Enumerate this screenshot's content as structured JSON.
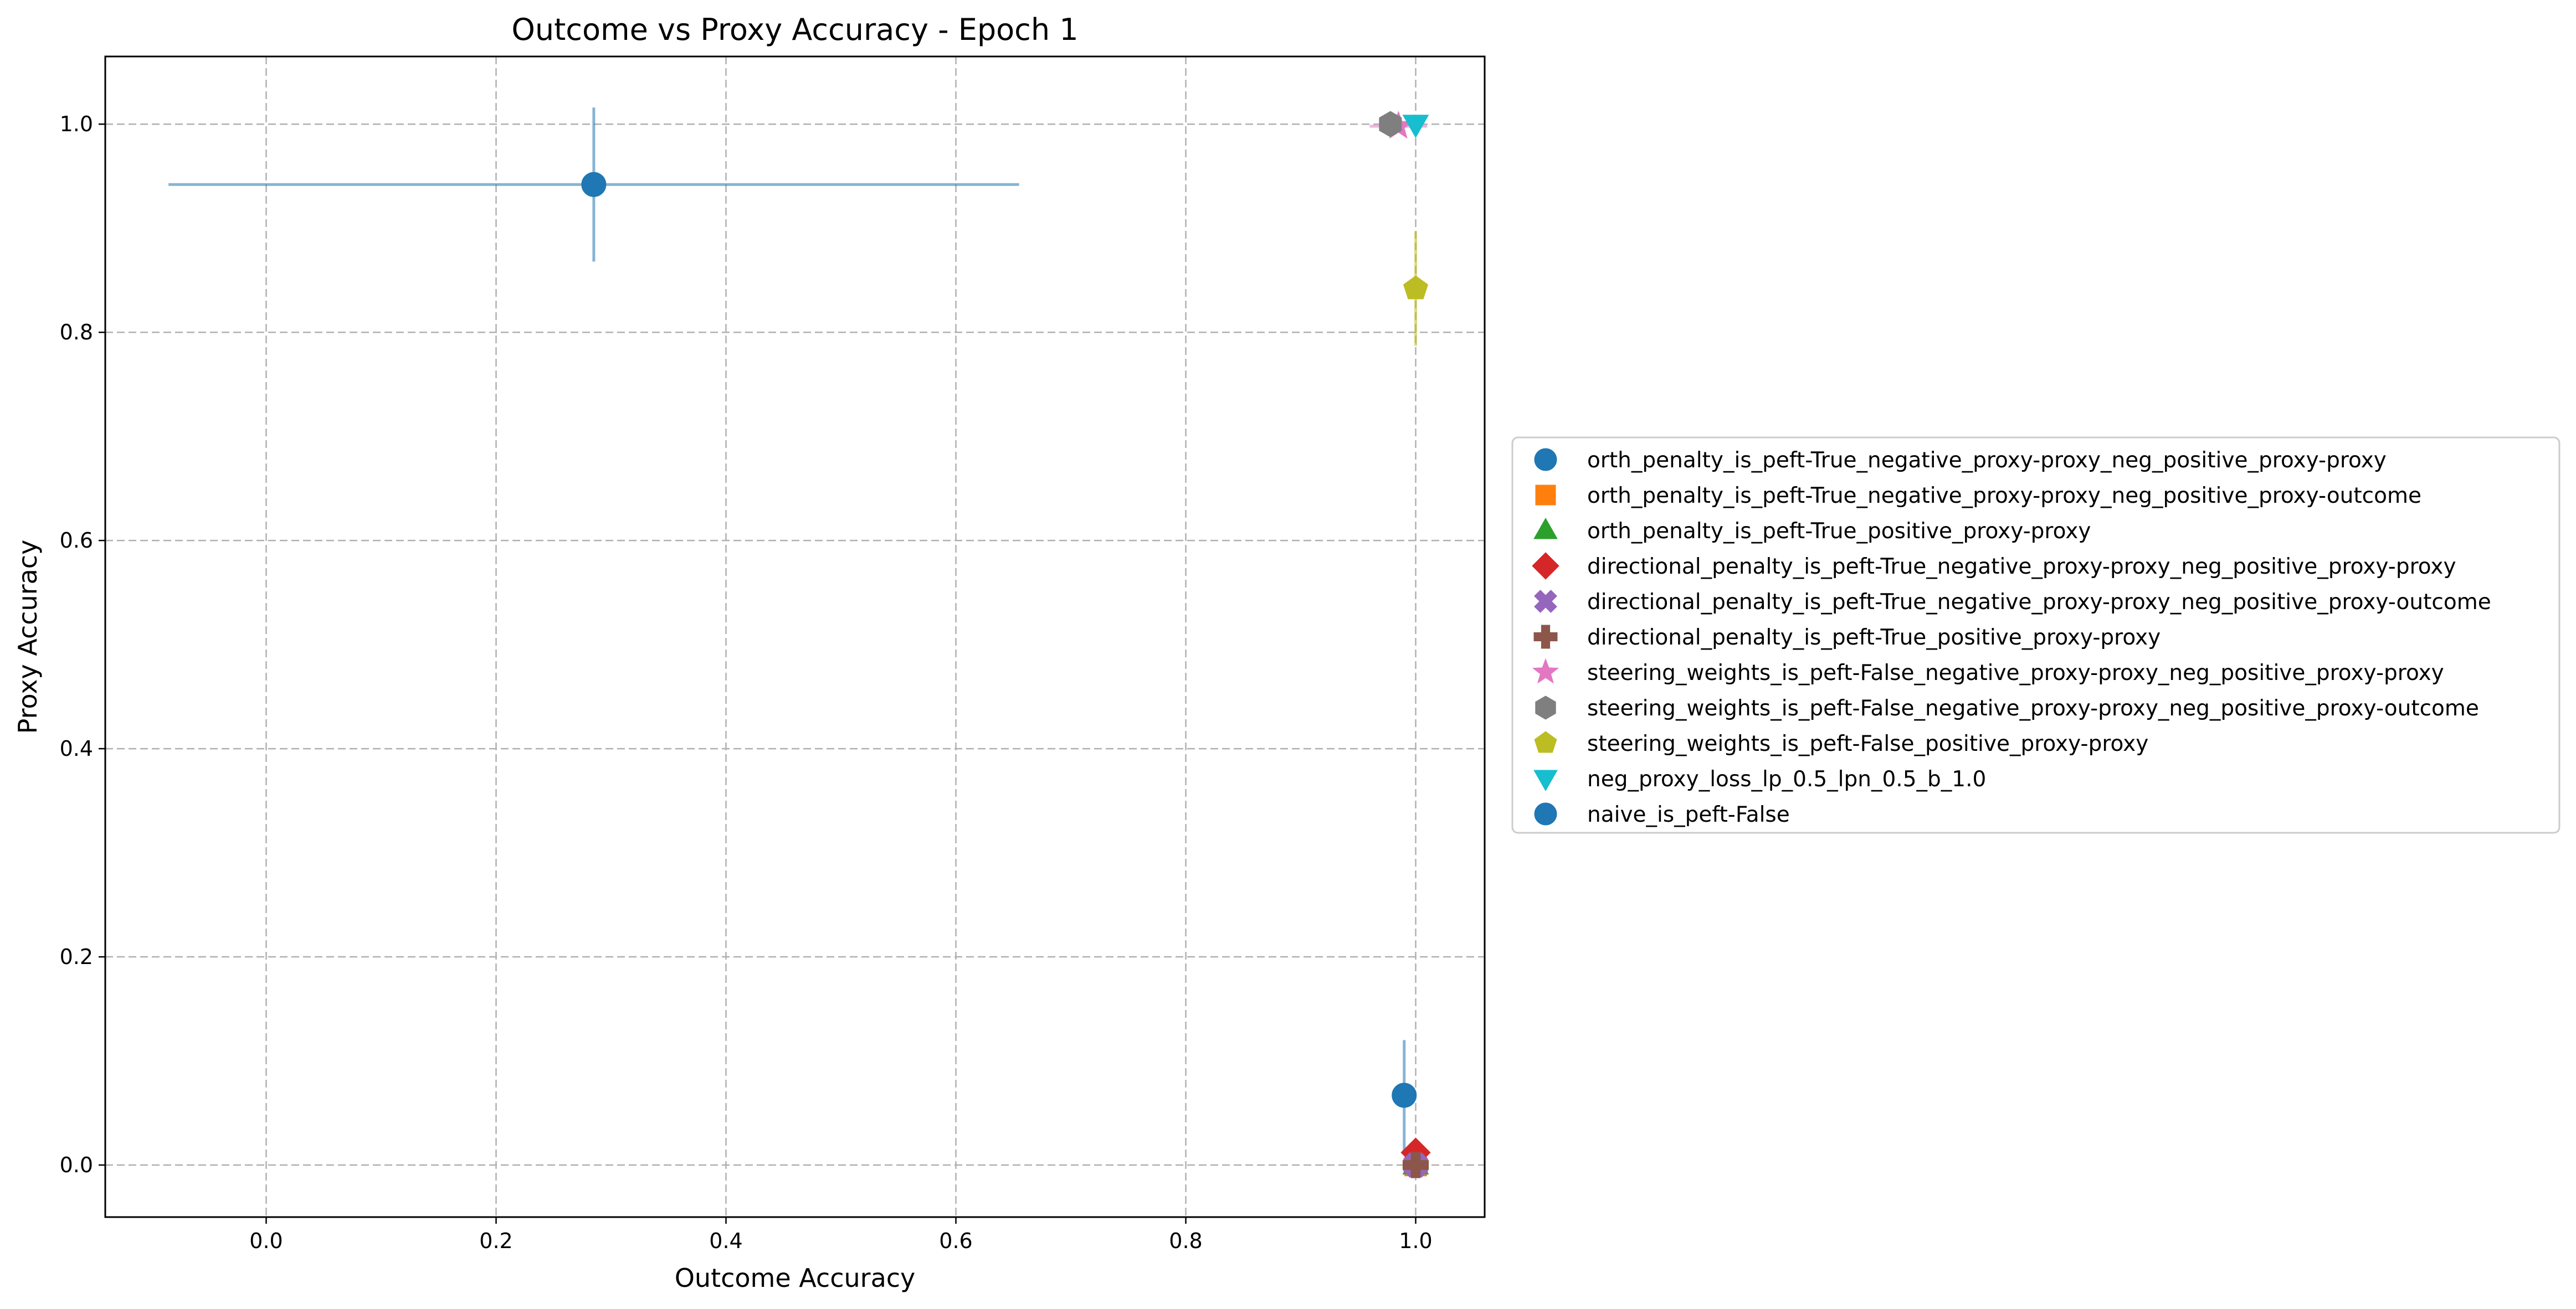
{
  "chart_data": {
    "type": "scatter",
    "title": "Outcome vs Proxy Accuracy - Epoch 1",
    "xlabel": "Outcome Accuracy",
    "ylabel": "Proxy Accuracy",
    "xlim": [
      -0.14,
      1.06
    ],
    "ylim": [
      -0.05,
      1.065
    ],
    "xticks": [
      0.0,
      0.2,
      0.4,
      0.6,
      0.8,
      1.0
    ],
    "xtick_labels": [
      "0.0",
      "0.2",
      "0.4",
      "0.6",
      "0.8",
      "1.0"
    ],
    "yticks": [
      0.0,
      0.2,
      0.4,
      0.6,
      0.8,
      1.0
    ],
    "ytick_labels": [
      "0.0",
      "0.2",
      "0.4",
      "0.6",
      "0.8",
      "1.0"
    ],
    "grid": true,
    "legend_placement": "right-outside",
    "series": [
      {
        "name": "orth_penalty_is_peft-True_negative_proxy-proxy_neg_positive_proxy-proxy",
        "marker": "circle",
        "color": "#1f77b4",
        "points": [
          {
            "x": 1.0,
            "y": 0.0,
            "xerr": 0.0,
            "yerr": 0.0
          }
        ]
      },
      {
        "name": "orth_penalty_is_peft-True_negative_proxy-proxy_neg_positive_proxy-outcome",
        "marker": "square",
        "color": "#ff7f0e",
        "points": [
          {
            "x": 1.0,
            "y": 0.0,
            "xerr": 0.0,
            "yerr": 0.0
          }
        ]
      },
      {
        "name": "orth_penalty_is_peft-True_positive_proxy-proxy",
        "marker": "triangle-up",
        "color": "#2ca02c",
        "points": [
          {
            "x": 1.0,
            "y": 0.0,
            "xerr": 0.0,
            "yerr": 0.0
          }
        ]
      },
      {
        "name": "directional_penalty_is_peft-True_negative_proxy-proxy_neg_positive_proxy-proxy",
        "marker": "diamond",
        "color": "#d62728",
        "points": [
          {
            "x": 1.0,
            "y": 0.012,
            "xerr": 0.0,
            "yerr": 0.012
          }
        ]
      },
      {
        "name": "directional_penalty_is_peft-True_negative_proxy-proxy_neg_positive_proxy-outcome",
        "marker": "x-thick",
        "color": "#9467bd",
        "points": [
          {
            "x": 1.0,
            "y": 0.0,
            "xerr": 0.0,
            "yerr": 0.0
          }
        ]
      },
      {
        "name": "directional_penalty_is_peft-True_positive_proxy-proxy",
        "marker": "plus-thick",
        "color": "#8c564b",
        "points": [
          {
            "x": 1.0,
            "y": 0.0,
            "xerr": 0.0,
            "yerr": 0.0
          }
        ]
      },
      {
        "name": "steering_weights_is_peft-False_negative_proxy-proxy_neg_positive_proxy-proxy",
        "marker": "star",
        "color": "#e377c2",
        "points": [
          {
            "x": 0.985,
            "y": 0.998,
            "xerr": 0.025,
            "yerr": 0.003
          }
        ]
      },
      {
        "name": "steering_weights_is_peft-False_negative_proxy-proxy_neg_positive_proxy-outcome",
        "marker": "hexagon",
        "color": "#7f7f7f",
        "points": [
          {
            "x": 0.978,
            "y": 1.0,
            "xerr": 0.0,
            "yerr": 0.0
          }
        ]
      },
      {
        "name": "steering_weights_is_peft-False_positive_proxy-proxy",
        "marker": "pentagon",
        "color": "#bcbd22",
        "points": [
          {
            "x": 1.0,
            "y": 0.842,
            "xerr": 0.0,
            "yerr": 0.055
          }
        ]
      },
      {
        "name": "neg_proxy_loss_lp_0.5_lpn_0.5_b_1.0",
        "marker": "triangle-down",
        "color": "#17becf",
        "points": [
          {
            "x": 1.0,
            "y": 1.0,
            "xerr": 0.0,
            "yerr": 0.0
          }
        ]
      },
      {
        "name": "naive_is_peft-False",
        "marker": "circle",
        "color": "#1f77b4",
        "points": [
          {
            "x": 0.285,
            "y": 0.942,
            "xerr": 0.37,
            "yerr": 0.074
          },
          {
            "x": 0.99,
            "y": 0.067,
            "xerr": 0.0,
            "yerr": 0.053
          }
        ]
      }
    ]
  }
}
